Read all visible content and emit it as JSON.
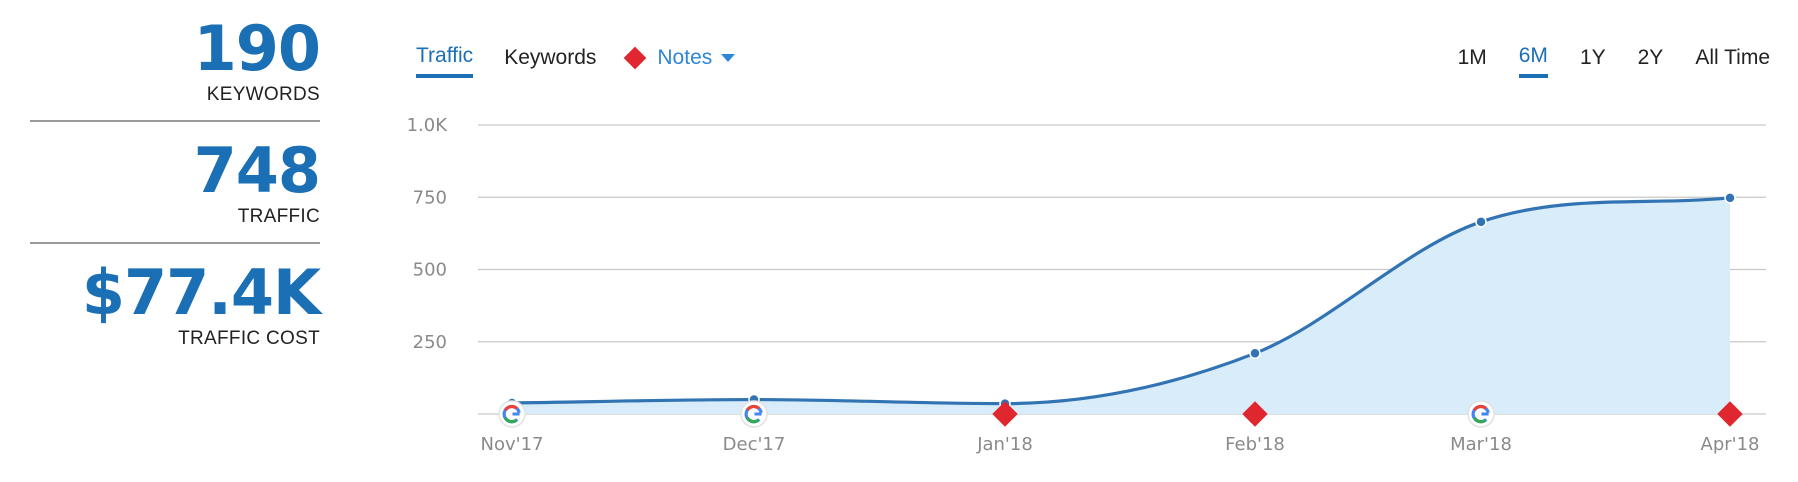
{
  "stats": [
    {
      "value": "190",
      "label": "KEYWORDS"
    },
    {
      "value": "748",
      "label": "TRAFFIC"
    },
    {
      "value": "$77.4K",
      "label": "TRAFFIC COST"
    }
  ],
  "tabs": [
    {
      "label": "Traffic",
      "active": true
    },
    {
      "label": "Keywords",
      "active": false
    }
  ],
  "notes_label": "Notes",
  "ranges": [
    {
      "label": "1M",
      "active": false
    },
    {
      "label": "6M",
      "active": true
    },
    {
      "label": "1Y",
      "active": false
    },
    {
      "label": "2Y",
      "active": false
    },
    {
      "label": "All Time",
      "active": false
    }
  ],
  "colors": {
    "accent": "#1a6fb5",
    "line": "#3274b3",
    "area": "#d8ecfa",
    "note": "#e0262e"
  },
  "chart_data": {
    "type": "area",
    "categories": [
      "Nov'17",
      "Dec'17",
      "Jan'18",
      "Feb'18",
      "Mar'18",
      "Apr'18"
    ],
    "series": [
      {
        "values": [
          38,
          50,
          36,
          210,
          665,
          748
        ]
      }
    ],
    "ylim": [
      0,
      1000
    ],
    "yticks": [
      250,
      500,
      750,
      1000
    ],
    "ytick_labels": [
      "250",
      "500",
      "750",
      "1.0K"
    ],
    "grid": true,
    "markers": [
      "google-icon",
      "google-icon",
      "note-diamond",
      "note-diamond",
      "google-icon",
      "note-diamond"
    ]
  }
}
